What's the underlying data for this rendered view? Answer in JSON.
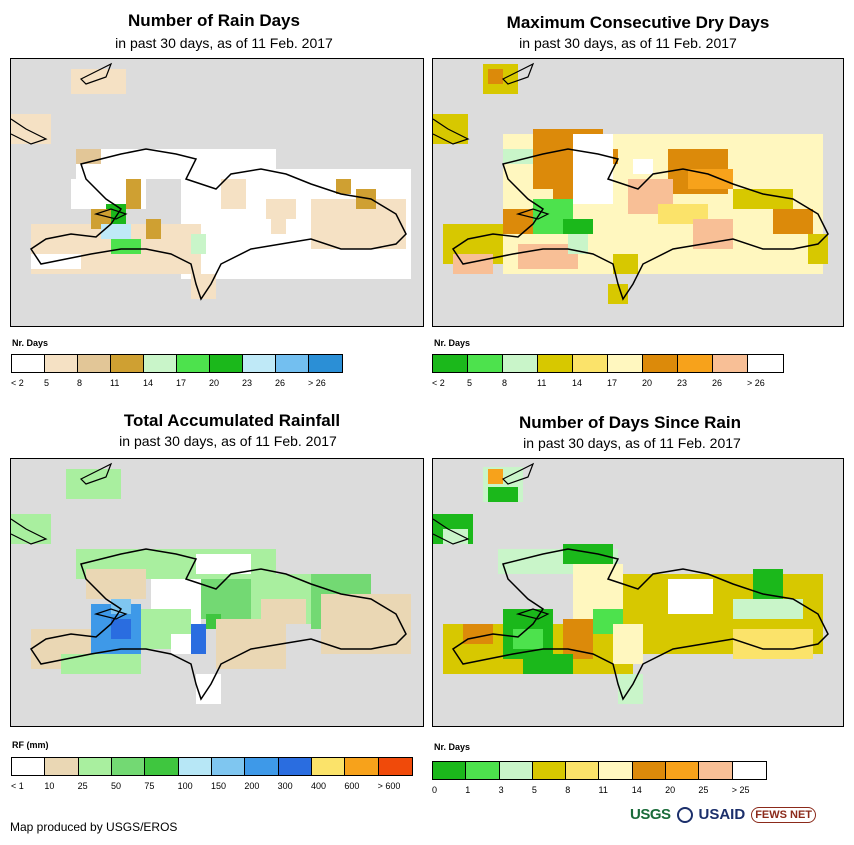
{
  "panels": [
    {
      "title": "Number of Rain Days",
      "subtitle": "in past 30 days, as of 11 Feb. 2017",
      "legend_label": "Nr. Days",
      "legend_colors": [
        "#ffffff",
        "#f5e1c4",
        "#e2c697",
        "#cfa032",
        "#c9f5c9",
        "#4de24d",
        "#1bb81b",
        "#bfe9f7",
        "#73bff0",
        "#2b8fd6"
      ],
      "legend_ticks": [
        "< 2",
        "5",
        "8",
        "11",
        "14",
        "17",
        "20",
        "23",
        "26",
        "> 26"
      ]
    },
    {
      "title": "Maximum Consecutive Dry Days",
      "subtitle": "in past 30 days, as of 11 Feb. 2017",
      "legend_label": "Nr. Days",
      "legend_colors": [
        "#1bb81b",
        "#4de24d",
        "#c9f5c9",
        "#d7c800",
        "#fbe36a",
        "#fff7bf",
        "#dc8a0a",
        "#f7a21b",
        "#f8bf96",
        "#ffffff"
      ],
      "legend_ticks": [
        "< 2",
        "5",
        "8",
        "11",
        "14",
        "17",
        "20",
        "23",
        "26",
        "> 26"
      ]
    },
    {
      "title": "Total Accumulated Rainfall",
      "subtitle": "in past 30 days, as of 11 Feb. 2017",
      "legend_label": "RF (mm)",
      "legend_colors": [
        "#ffffff",
        "#ead7b4",
        "#a9ef9f",
        "#73d973",
        "#3fc63f",
        "#b7e7f6",
        "#7fc6f0",
        "#3e99e8",
        "#2a6de0",
        "#fbe36a",
        "#f7a21b",
        "#f04a0a"
      ],
      "legend_ticks": [
        "< 1",
        "10",
        "25",
        "50",
        "75",
        "100",
        "150",
        "200",
        "300",
        "400",
        "600",
        "> 600"
      ]
    },
    {
      "title": "Number of Days Since Rain",
      "subtitle": "in past 30 days, as of 11 Feb. 2017",
      "legend_label": "Nr. Days",
      "legend_colors": [
        "#1bb81b",
        "#4de24d",
        "#c9f5c9",
        "#d7c800",
        "#fbe36a",
        "#fff7bf",
        "#dc8a0a",
        "#f7a21b",
        "#f8bf96",
        "#ffffff"
      ],
      "legend_ticks": [
        "0",
        "1",
        "3",
        "5",
        "8",
        "11",
        "14",
        "20",
        "25",
        "> 25"
      ]
    }
  ],
  "footer": "Map produced by USGS/EROS",
  "logos": {
    "usgs": "USGS",
    "usaid": "USAID",
    "fews": "FEWS NET"
  }
}
